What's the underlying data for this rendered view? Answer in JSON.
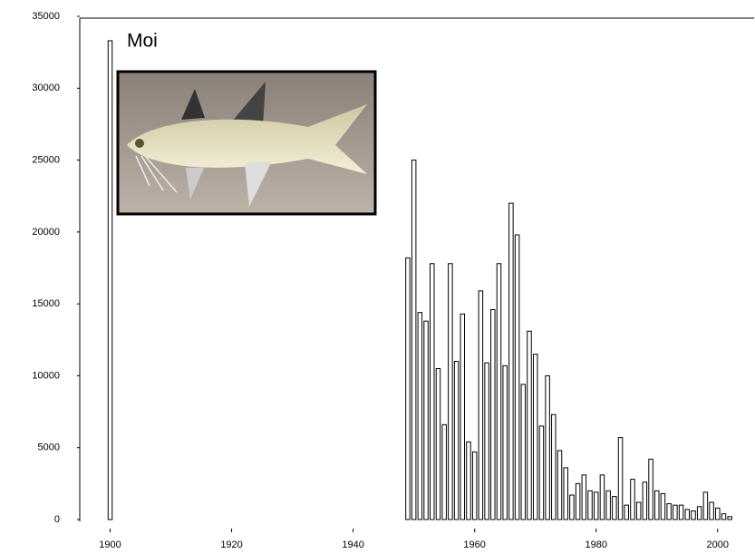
{
  "chart_data": {
    "type": "bar",
    "title": "Moi",
    "x": [
      1900,
      1949,
      1950,
      1951,
      1952,
      1953,
      1954,
      1955,
      1956,
      1957,
      1958,
      1959,
      1960,
      1961,
      1962,
      1963,
      1964,
      1965,
      1966,
      1967,
      1968,
      1969,
      1970,
      1971,
      1972,
      1973,
      1974,
      1975,
      1976,
      1977,
      1978,
      1979,
      1980,
      1981,
      1982,
      1983,
      1984,
      1985,
      1986,
      1987,
      1988,
      1989,
      1990,
      1991,
      1992,
      1993,
      1994,
      1995,
      1996,
      1997,
      1998,
      1999,
      2000,
      2001,
      2002
    ],
    "values": [
      33300,
      18200,
      25000,
      14400,
      13800,
      17800,
      10500,
      6600,
      17800,
      11000,
      14300,
      5400,
      4700,
      15900,
      10900,
      14600,
      17800,
      10700,
      22000,
      19800,
      9400,
      13100,
      11500,
      6500,
      10000,
      7300,
      4800,
      3600,
      1700,
      2500,
      3100,
      2000,
      1900,
      3100,
      2000,
      1600,
      5700,
      1000,
      2800,
      1200,
      2600,
      4200,
      2000,
      1800,
      1100,
      1000,
      1000,
      700,
      600,
      900,
      1900,
      1200,
      800,
      400,
      200
    ],
    "color": "#ffffff",
    "xlim": [
      1895,
      2006
    ],
    "ylim": [
      0,
      35000
    ],
    "xticks": [
      1900,
      1920,
      1940,
      1960,
      1980,
      2000
    ],
    "yticks": [
      0,
      5000,
      10000,
      15000,
      20000,
      25000,
      30000,
      35000
    ]
  }
}
